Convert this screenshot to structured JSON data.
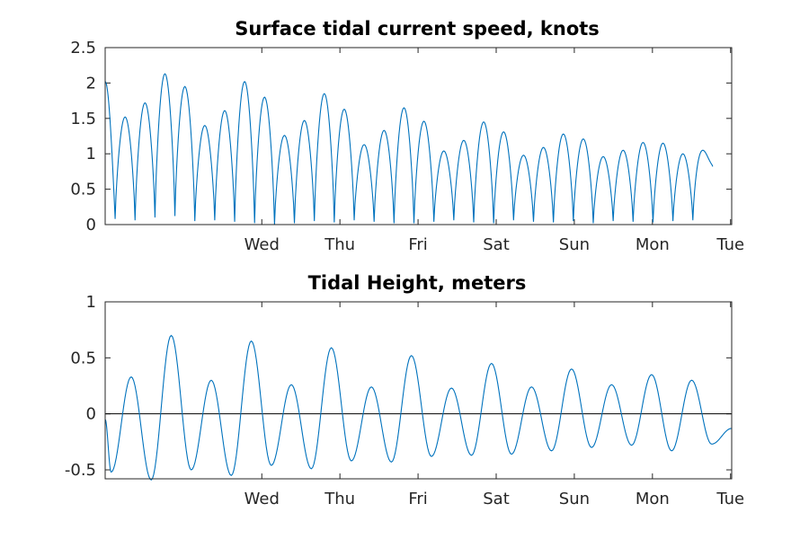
{
  "chart_data": [
    {
      "type": "line",
      "title": "Surface tidal current speed, knots",
      "xlabel": "",
      "ylabel": "",
      "ylim": [
        0,
        2.5
      ],
      "y_ticks": [
        "0",
        "0.5",
        "1",
        "1.5",
        "2",
        "2.5"
      ],
      "x_ticks": [
        "Wed",
        "Thu",
        "Fri",
        "Sat",
        "Sun",
        "Mon",
        "Tue"
      ],
      "x_range_days": [
        -1.7,
        7.1
      ],
      "grid": false,
      "series": [
        {
          "color": "#0072bd",
          "peaks": [
            2.02,
            1.52,
            1.72,
            2.13,
            1.95,
            1.4,
            1.61,
            2.02,
            1.8,
            1.26,
            1.47,
            1.85,
            1.63,
            1.13,
            1.33,
            1.65,
            1.46,
            1.04,
            1.19,
            1.45,
            1.31,
            0.98,
            1.09,
            1.28,
            1.21,
            0.96,
            1.05,
            1.16,
            1.15,
            1.0,
            1.05
          ],
          "minima": [
            0.08,
            0.06,
            0.1,
            0.12,
            0.05,
            0.06,
            0.04,
            0.02,
            0.0,
            0.02,
            0.05,
            0.03,
            0.06,
            0.04,
            0.02,
            0.02,
            0.04,
            0.06,
            0.03,
            0.02,
            0.06,
            0.04,
            0.03,
            0.05,
            0.02,
            0.05,
            0.04,
            0.03,
            0.05,
            0.06
          ],
          "start_value": 2.02,
          "end_value": 0.82
        }
      ]
    },
    {
      "type": "line",
      "title": "Tidal Height, meters",
      "xlabel": "",
      "ylabel": "",
      "ylim": [
        -0.58,
        1
      ],
      "y_ticks": [
        "-0.5",
        "0",
        "0.5",
        "1"
      ],
      "x_ticks": [
        "Wed",
        "Thu",
        "Fri",
        "Sat",
        "Sun",
        "Mon",
        "Tue"
      ],
      "x_range_days": [
        -1.7,
        7.1
      ],
      "grid": false,
      "zero_line": true,
      "series": [
        {
          "color": "#0072bd",
          "start_value": -0.05,
          "troughs": [
            -0.52,
            -0.59,
            -0.5,
            -0.55,
            -0.46,
            -0.49,
            -0.42,
            -0.43,
            -0.38,
            -0.37,
            -0.36,
            -0.33,
            -0.3,
            -0.28,
            -0.33,
            -0.27
          ],
          "highs": [
            0.33,
            0.7,
            0.3,
            0.65,
            0.26,
            0.59,
            0.24,
            0.52,
            0.23,
            0.45,
            0.24,
            0.4,
            0.26,
            0.35,
            0.3
          ],
          "end_value": -0.13
        }
      ]
    }
  ]
}
